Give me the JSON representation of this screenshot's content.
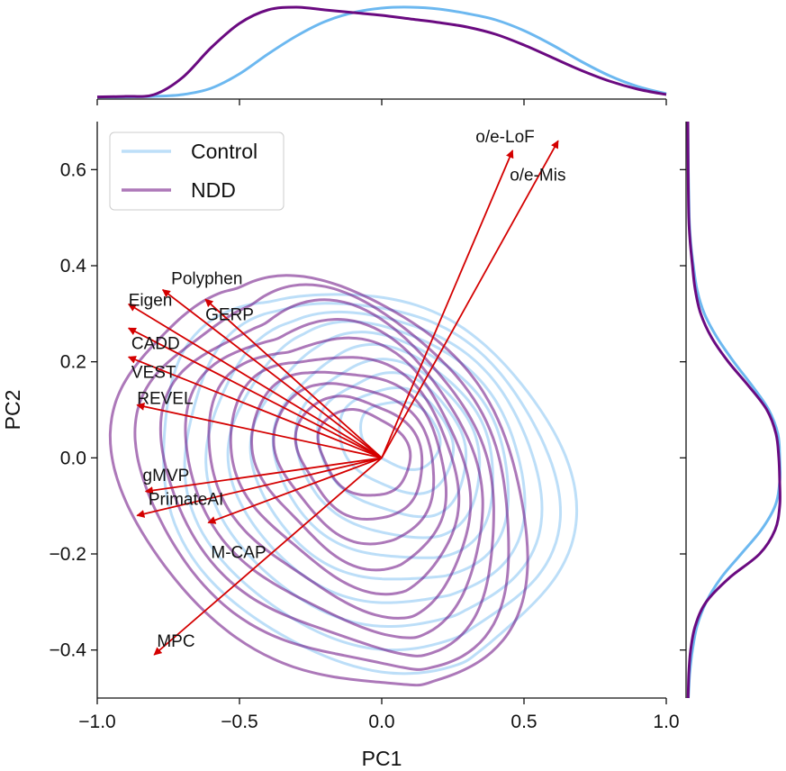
{
  "chart_data": {
    "type": "scatter",
    "subtype": "kde-contour-biplot",
    "xlabel": "PC1",
    "ylabel": "PC2",
    "xlim": [
      -1.0,
      1.0
    ],
    "ylim": [
      -0.5,
      0.7
    ],
    "x_ticks": [
      -1.0,
      -0.5,
      0.0,
      0.5,
      1.0
    ],
    "x_tick_labels": [
      "−1.0",
      "−0.5",
      "0.0",
      "0.5",
      "1.0"
    ],
    "y_ticks": [
      -0.4,
      -0.2,
      0.0,
      0.2,
      0.4,
      0.6
    ],
    "y_tick_labels": [
      "−0.4",
      "−0.2",
      "0.0",
      "0.2",
      "0.4",
      "0.6"
    ],
    "grid": false,
    "legend_position": "top-left",
    "series": [
      {
        "name": "Control",
        "color": "#6cb8f0",
        "contour_opacity": 0.45,
        "center": [
          0.05,
          0.02
        ],
        "contour_levels": 10,
        "marginal_x": [
          [
            -1.0,
            0.002
          ],
          [
            -0.9,
            0.004
          ],
          [
            -0.8,
            0.01
          ],
          [
            -0.7,
            0.03
          ],
          [
            -0.6,
            0.1
          ],
          [
            -0.5,
            0.26
          ],
          [
            -0.4,
            0.48
          ],
          [
            -0.3,
            0.68
          ],
          [
            -0.2,
            0.84
          ],
          [
            -0.1,
            0.94
          ],
          [
            0.0,
            0.99
          ],
          [
            0.1,
            1.0
          ],
          [
            0.2,
            0.98
          ],
          [
            0.3,
            0.93
          ],
          [
            0.4,
            0.86
          ],
          [
            0.5,
            0.74
          ],
          [
            0.6,
            0.58
          ],
          [
            0.7,
            0.4
          ],
          [
            0.8,
            0.24
          ],
          [
            0.9,
            0.12
          ],
          [
            1.0,
            0.04
          ]
        ],
        "marginal_y": [
          [
            -0.5,
            0.005
          ],
          [
            -0.45,
            0.02
          ],
          [
            -0.4,
            0.05
          ],
          [
            -0.35,
            0.1
          ],
          [
            -0.3,
            0.2
          ],
          [
            -0.25,
            0.36
          ],
          [
            -0.2,
            0.58
          ],
          [
            -0.15,
            0.8
          ],
          [
            -0.1,
            0.95
          ],
          [
            -0.05,
            1.0
          ],
          [
            0.0,
            1.0
          ],
          [
            0.05,
            0.98
          ],
          [
            0.1,
            0.88
          ],
          [
            0.15,
            0.7
          ],
          [
            0.2,
            0.5
          ],
          [
            0.25,
            0.32
          ],
          [
            0.3,
            0.18
          ],
          [
            0.35,
            0.1
          ],
          [
            0.4,
            0.06
          ],
          [
            0.45,
            0.03
          ],
          [
            0.5,
            0.015
          ],
          [
            0.6,
            0.005
          ],
          [
            0.7,
            0.0
          ]
        ]
      },
      {
        "name": "NDD",
        "color": "#6a0a80",
        "contour_opacity": 0.55,
        "center": [
          -0.15,
          -0.05
        ],
        "contour_levels": 10,
        "marginal_x": [
          [
            -1.0,
            0.004
          ],
          [
            -0.9,
            0.01
          ],
          [
            -0.8,
            0.03
          ],
          [
            -0.7,
            0.22
          ],
          [
            -0.6,
            0.55
          ],
          [
            -0.5,
            0.82
          ],
          [
            -0.4,
            0.97
          ],
          [
            -0.3,
            1.0
          ],
          [
            -0.2,
            0.97
          ],
          [
            -0.1,
            0.94
          ],
          [
            0.0,
            0.91
          ],
          [
            0.1,
            0.87
          ],
          [
            0.2,
            0.83
          ],
          [
            0.3,
            0.78
          ],
          [
            0.4,
            0.7
          ],
          [
            0.5,
            0.58
          ],
          [
            0.6,
            0.44
          ],
          [
            0.7,
            0.3
          ],
          [
            0.8,
            0.18
          ],
          [
            0.9,
            0.09
          ],
          [
            1.0,
            0.03
          ]
        ],
        "marginal_y": [
          [
            -0.5,
            0.003
          ],
          [
            -0.45,
            0.01
          ],
          [
            -0.4,
            0.03
          ],
          [
            -0.35,
            0.08
          ],
          [
            -0.3,
            0.2
          ],
          [
            -0.25,
            0.45
          ],
          [
            -0.2,
            0.78
          ],
          [
            -0.15,
            0.95
          ],
          [
            -0.1,
            1.0
          ],
          [
            -0.05,
            1.0
          ],
          [
            0.0,
            0.99
          ],
          [
            0.05,
            0.96
          ],
          [
            0.1,
            0.86
          ],
          [
            0.15,
            0.66
          ],
          [
            0.2,
            0.44
          ],
          [
            0.25,
            0.26
          ],
          [
            0.3,
            0.14
          ],
          [
            0.35,
            0.08
          ],
          [
            0.4,
            0.05
          ],
          [
            0.45,
            0.025
          ],
          [
            0.5,
            0.01
          ],
          [
            0.6,
            0.003
          ],
          [
            0.7,
            0.0
          ]
        ]
      }
    ],
    "loadings": [
      {
        "name": "o/e-LoF",
        "x": 0.62,
        "y": 0.66,
        "label_x": 0.33,
        "label_y": 0.67
      },
      {
        "name": "o/e-Mis",
        "x": 0.46,
        "y": 0.64,
        "label_x": 0.45,
        "label_y": 0.59
      },
      {
        "name": "Polyphen",
        "x": -0.77,
        "y": 0.35,
        "label_x": -0.74,
        "label_y": 0.375
      },
      {
        "name": "Eigen",
        "x": -0.89,
        "y": 0.32,
        "label_x": -0.89,
        "label_y": 0.33
      },
      {
        "name": "GERP",
        "x": -0.62,
        "y": 0.33,
        "label_x": -0.62,
        "label_y": 0.3
      },
      {
        "name": "CADD",
        "x": -0.89,
        "y": 0.27,
        "label_x": -0.88,
        "label_y": 0.24
      },
      {
        "name": "VEST",
        "x": -0.89,
        "y": 0.21,
        "label_x": -0.88,
        "label_y": 0.18
      },
      {
        "name": "REVEL",
        "x": -0.86,
        "y": 0.11,
        "label_x": -0.86,
        "label_y": 0.125
      },
      {
        "name": "gMVP",
        "x": -0.83,
        "y": -0.07,
        "label_x": -0.84,
        "label_y": -0.035
      },
      {
        "name": "PrimateAI",
        "x": -0.86,
        "y": -0.12,
        "label_x": -0.82,
        "label_y": -0.085
      },
      {
        "name": "M-CAP",
        "x": -0.61,
        "y": -0.135,
        "label_x": -0.6,
        "label_y": -0.195
      },
      {
        "name": "MPC",
        "x": -0.8,
        "y": -0.41,
        "label_x": -0.79,
        "label_y": -0.38
      }
    ],
    "loading_color": "#d40000"
  }
}
